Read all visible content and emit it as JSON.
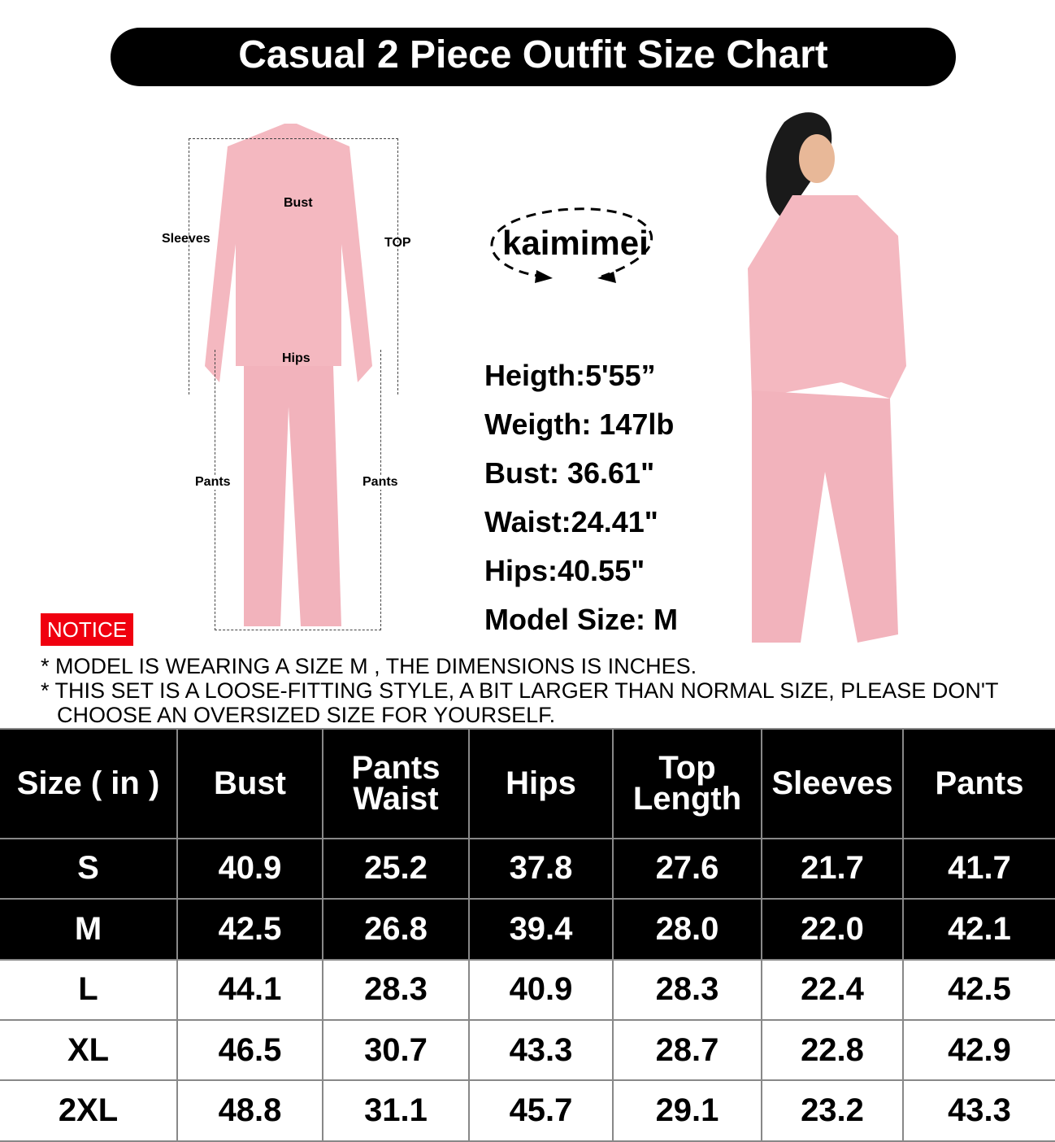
{
  "title": "Casual 2 Piece Outfit Size Chart",
  "diagram_labels": {
    "bust": "Bust",
    "sleeves": "Sleeves",
    "top": "TOP",
    "hips": "Hips",
    "pants_left": "Pants",
    "pants_right": "Pants"
  },
  "brand": "kaimimei",
  "model_stats": [
    "Heigth:5'55”",
    "Weigth: 147lb",
    "Bust: 36.61\"",
    "Waist:24.41\"",
    "Hips:40.55\"",
    "Model Size: M"
  ],
  "notice": {
    "badge": "NOTICE",
    "lines": [
      "* MODEL IS WEARING A SIZE  M ,  THE DIMENSIONS IS INCHES.",
      "* THIS SET IS A LOOSE-FITTING STYLE, A BIT LARGER THAN NORMAL SIZE, PLEASE DON'T CHOOSE AN OVERSIZED SIZE FOR YOURSELF."
    ],
    "badge_color": "#f0000f"
  },
  "table": {
    "headers": [
      "Size ( in )",
      "Bust",
      "Pants Waist",
      "Hips",
      "Top Length",
      "Sleeves",
      "Pants"
    ],
    "rows": [
      [
        "S",
        "40.9",
        "25.2",
        "37.8",
        "27.6",
        "21.7",
        "41.7"
      ],
      [
        "M",
        "42.5",
        "26.8",
        "39.4",
        "28.0",
        "22.0",
        "42.1"
      ],
      [
        "L",
        "44.1",
        "28.3",
        "40.9",
        "28.3",
        "22.4",
        "42.5"
      ],
      [
        "XL",
        "46.5",
        "30.7",
        "43.3",
        "28.7",
        "22.8",
        "42.9"
      ],
      [
        "2XL",
        "48.8",
        "31.1",
        "45.7",
        "29.1",
        "23.2",
        "43.3"
      ]
    ]
  },
  "garment_color": "#f4b8c0"
}
